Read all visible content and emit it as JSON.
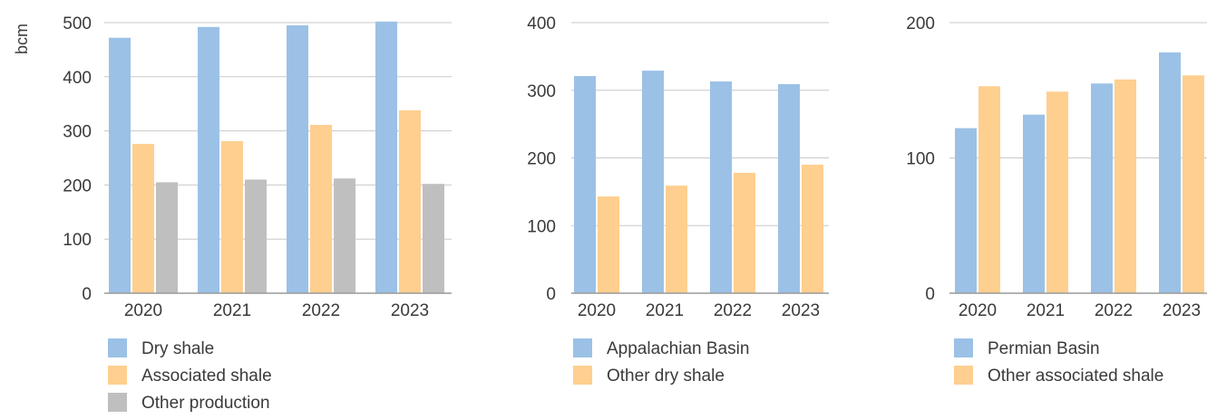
{
  "chart_data": [
    {
      "type": "bar",
      "ylabel": "bcm",
      "ylim": [
        0,
        500
      ],
      "yticks": [
        0,
        100,
        200,
        300,
        400,
        500
      ],
      "categories": [
        "2020",
        "2021",
        "2022",
        "2023"
      ],
      "grid": true,
      "legend_placement": "bottom",
      "series": [
        {
          "name": "Dry shale",
          "color": "#9bc1e6",
          "values": [
            472,
            492,
            495,
            502
          ]
        },
        {
          "name": "Associated shale",
          "color": "#fecf8f",
          "values": [
            276,
            281,
            311,
            338
          ]
        },
        {
          "name": "Other production",
          "color": "#bfbfbf",
          "values": [
            205,
            210,
            212,
            202
          ]
        }
      ]
    },
    {
      "type": "bar",
      "ylim": [
        0,
        400
      ],
      "yticks": [
        0,
        100,
        200,
        300,
        400
      ],
      "categories": [
        "2020",
        "2021",
        "2022",
        "2023"
      ],
      "grid": true,
      "legend_placement": "bottom",
      "series": [
        {
          "name": "Appalachian Basin",
          "color": "#9bc1e6",
          "values": [
            321,
            329,
            313,
            309
          ]
        },
        {
          "name": "Other dry shale",
          "color": "#fecf8f",
          "values": [
            143,
            159,
            178,
            190
          ]
        }
      ]
    },
    {
      "type": "bar",
      "ylim": [
        0,
        200
      ],
      "yticks": [
        0,
        100,
        200
      ],
      "categories": [
        "2020",
        "2021",
        "2022",
        "2023"
      ],
      "grid": true,
      "legend_placement": "bottom",
      "series": [
        {
          "name": "Permian Basin",
          "color": "#9bc1e6",
          "values": [
            122,
            132,
            155,
            178
          ]
        },
        {
          "name": "Other associated shale",
          "color": "#fecf8f",
          "values": [
            153,
            149,
            158,
            161
          ]
        }
      ]
    }
  ]
}
